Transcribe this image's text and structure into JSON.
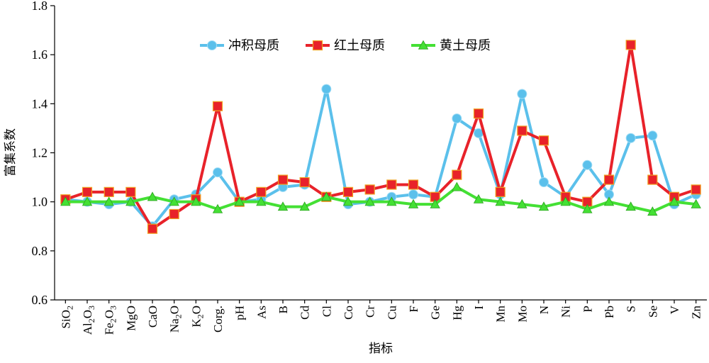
{
  "chart_data": {
    "type": "line",
    "xlabel": "指标",
    "ylabel": "富集系数",
    "ylim": [
      0.6,
      1.8
    ],
    "yticks": [
      "0.6",
      "0.8",
      "1.0",
      "1.2",
      "1.4",
      "1.6",
      "1.8"
    ],
    "grid": false,
    "legend_position": "top",
    "categories": [
      "SiO2",
      "Al2O3",
      "Fe2O3",
      "MgO",
      "CaO",
      "Na2O",
      "K2O",
      "Corg.",
      "pH",
      "As",
      "B",
      "Cd",
      "Cl",
      "Co",
      "Cr",
      "Cu",
      "F",
      "Ge",
      "Hg",
      "I",
      "Mn",
      "Mo",
      "N",
      "Ni",
      "P",
      "Pb",
      "S",
      "Se",
      "V",
      "Zn"
    ],
    "series": [
      {
        "name": "冲积母质",
        "color": "#5bc0eb",
        "marker": "circle",
        "values": [
          1.01,
          1.0,
          0.99,
          1.0,
          0.9,
          1.01,
          1.03,
          1.12,
          1.0,
          1.01,
          1.06,
          1.07,
          1.46,
          0.99,
          1.0,
          1.02,
          1.03,
          1.02,
          1.34,
          1.28,
          1.03,
          1.44,
          1.08,
          1.02,
          1.15,
          1.03,
          1.26,
          1.27,
          0.99,
          1.03
        ]
      },
      {
        "name": "红土母质",
        "color": "#e8222a",
        "marker": "square",
        "values": [
          1.01,
          1.04,
          1.04,
          1.04,
          0.89,
          0.95,
          1.01,
          1.39,
          1.0,
          1.04,
          1.09,
          1.08,
          1.02,
          1.04,
          1.05,
          1.07,
          1.07,
          1.02,
          1.11,
          1.36,
          1.04,
          1.29,
          1.25,
          1.02,
          1.0,
          1.09,
          1.64,
          1.09,
          1.02,
          1.05
        ]
      },
      {
        "name": "黄土母质",
        "color": "#44e034",
        "marker": "triangle",
        "values": [
          1.0,
          1.0,
          1.0,
          1.0,
          1.02,
          1.0,
          1.0,
          0.97,
          1.0,
          1.0,
          0.98,
          0.98,
          1.02,
          1.0,
          1.0,
          1.0,
          0.99,
          0.99,
          1.06,
          1.01,
          1.0,
          0.99,
          0.98,
          1.0,
          0.97,
          1.0,
          0.98,
          0.96,
          1.0,
          0.99
        ]
      }
    ]
  }
}
